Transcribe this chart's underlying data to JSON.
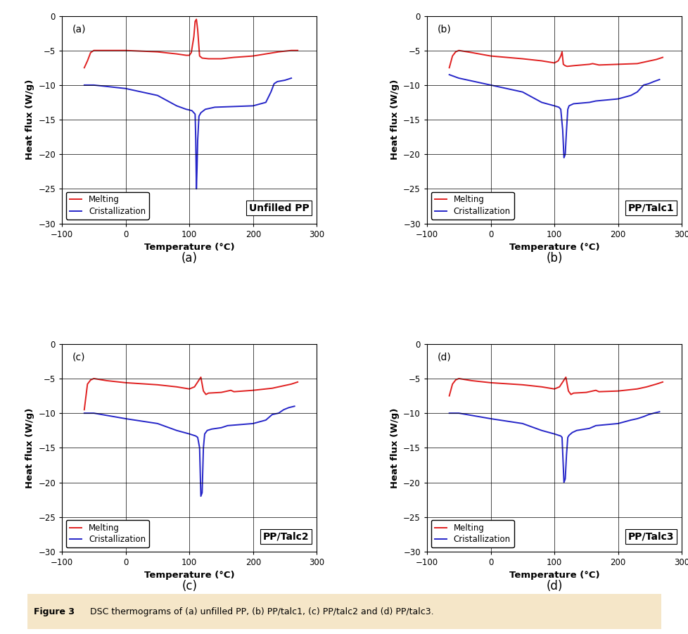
{
  "xlim": [
    -100,
    300
  ],
  "ylim": [
    -30,
    0
  ],
  "xticks": [
    -100,
    0,
    100,
    200,
    300
  ],
  "yticks": [
    0,
    -5,
    -10,
    -15,
    -20,
    -25,
    -30
  ],
  "xlabel": "Temperature (°C)",
  "ylabel": "Heat flux (W/g)",
  "red_color": "#e02020",
  "blue_color": "#2525c8",
  "legend_melting": "Melting",
  "legend_cryst": "Cristallization",
  "subplots": [
    {
      "label": "(a)",
      "title": "Unfilled PP",
      "melting_x": [
        -65,
        -60,
        -55,
        -50,
        -30,
        0,
        50,
        80,
        95,
        100,
        103,
        107,
        109,
        111,
        113,
        116,
        120,
        130,
        150,
        160,
        170,
        200,
        240,
        260,
        270
      ],
      "melting_y": [
        -7.5,
        -6.5,
        -5.3,
        -5.0,
        -5.0,
        -5.0,
        -5.2,
        -5.5,
        -5.7,
        -5.7,
        -5.3,
        -3.0,
        -0.8,
        -0.5,
        -2.0,
        -5.8,
        -6.1,
        -6.2,
        -6.2,
        -6.1,
        -6.0,
        -5.8,
        -5.2,
        -5.0,
        -5.0
      ],
      "cryst_x": [
        -65,
        -50,
        0,
        50,
        80,
        95,
        100,
        104,
        107,
        109,
        110,
        111,
        112,
        113,
        115,
        118,
        125,
        140,
        200,
        220,
        228,
        233,
        238,
        250,
        260
      ],
      "cryst_y": [
        -10.0,
        -10.0,
        -10.5,
        -11.5,
        -13.0,
        -13.5,
        -13.6,
        -13.7,
        -14.0,
        -14.2,
        -18.0,
        -25.0,
        -22.0,
        -18.0,
        -14.5,
        -14.0,
        -13.5,
        -13.2,
        -13.0,
        -12.5,
        -11.0,
        -9.8,
        -9.5,
        -9.3,
        -9.0
      ]
    },
    {
      "label": "(b)",
      "title": "PP/Talc1",
      "melting_x": [
        -65,
        -60,
        -55,
        -50,
        -30,
        0,
        50,
        80,
        100,
        106,
        110,
        112,
        114,
        117,
        120,
        130,
        155,
        160,
        165,
        170,
        200,
        230,
        245,
        260,
        270
      ],
      "melting_y": [
        -7.5,
        -5.8,
        -5.2,
        -5.0,
        -5.3,
        -5.8,
        -6.2,
        -6.5,
        -6.8,
        -6.5,
        -5.8,
        -5.2,
        -7.0,
        -7.2,
        -7.3,
        -7.2,
        -7.0,
        -6.9,
        -7.0,
        -7.1,
        -7.0,
        -6.9,
        -6.6,
        -6.3,
        -6.0
      ],
      "cryst_x": [
        -65,
        -50,
        0,
        50,
        80,
        100,
        107,
        110,
        113,
        115,
        117,
        119,
        121,
        123,
        130,
        155,
        165,
        200,
        220,
        230,
        240,
        248,
        256,
        265
      ],
      "cryst_y": [
        -8.5,
        -9.0,
        -10.0,
        -11.0,
        -12.5,
        -13.0,
        -13.2,
        -13.5,
        -16.5,
        -20.5,
        -20.0,
        -16.5,
        -13.5,
        -13.0,
        -12.7,
        -12.5,
        -12.3,
        -12.0,
        -11.5,
        -11.0,
        -10.0,
        -9.8,
        -9.5,
        -9.2
      ]
    },
    {
      "label": "(c)",
      "title": "PP/Talc2",
      "melting_x": [
        -65,
        -60,
        -55,
        -50,
        -30,
        0,
        50,
        80,
        100,
        108,
        113,
        118,
        122,
        126,
        130,
        150,
        160,
        165,
        170,
        200,
        230,
        245,
        260,
        270
      ],
      "melting_y": [
        -9.5,
        -5.8,
        -5.2,
        -5.0,
        -5.3,
        -5.6,
        -5.9,
        -6.2,
        -6.5,
        -6.2,
        -5.5,
        -4.8,
        -6.8,
        -7.3,
        -7.1,
        -7.0,
        -6.8,
        -6.7,
        -6.9,
        -6.7,
        -6.4,
        -6.1,
        -5.8,
        -5.5
      ],
      "cryst_x": [
        -65,
        -50,
        0,
        50,
        80,
        100,
        110,
        113,
        116,
        118,
        120,
        122,
        124,
        128,
        135,
        150,
        160,
        200,
        220,
        230,
        240,
        248,
        256,
        265
      ],
      "cryst_y": [
        -10.0,
        -10.0,
        -10.8,
        -11.5,
        -12.5,
        -13.0,
        -13.3,
        -13.5,
        -15.0,
        -22.0,
        -21.5,
        -15.0,
        -13.0,
        -12.5,
        -12.3,
        -12.1,
        -11.8,
        -11.5,
        -11.0,
        -10.2,
        -10.0,
        -9.5,
        -9.2,
        -9.0
      ]
    },
    {
      "label": "(d)",
      "title": "PP/Talc3",
      "melting_x": [
        -65,
        -60,
        -55,
        -50,
        -30,
        0,
        50,
        80,
        100,
        108,
        113,
        118,
        122,
        126,
        130,
        150,
        160,
        165,
        170,
        200,
        230,
        245,
        260,
        270
      ],
      "melting_y": [
        -7.5,
        -5.8,
        -5.2,
        -5.0,
        -5.3,
        -5.6,
        -5.9,
        -6.2,
        -6.5,
        -6.2,
        -5.5,
        -4.8,
        -6.8,
        -7.3,
        -7.1,
        -7.0,
        -6.8,
        -6.7,
        -6.9,
        -6.8,
        -6.5,
        -6.2,
        -5.8,
        -5.5
      ],
      "cryst_x": [
        -65,
        -50,
        0,
        50,
        80,
        100,
        110,
        112,
        115,
        117,
        119,
        121,
        123,
        128,
        135,
        155,
        165,
        200,
        220,
        230,
        240,
        248,
        256,
        265
      ],
      "cryst_y": [
        -10.0,
        -10.0,
        -10.8,
        -11.5,
        -12.5,
        -13.0,
        -13.3,
        -13.5,
        -20.0,
        -19.5,
        -16.0,
        -13.5,
        -13.2,
        -12.8,
        -12.5,
        -12.2,
        -11.8,
        -11.5,
        -11.0,
        -10.8,
        -10.5,
        -10.2,
        -10.0,
        -9.8
      ]
    }
  ],
  "subplot_labels_below": [
    "(a)",
    "(b)",
    "(c)",
    "(d)"
  ],
  "figure_caption_bold": "Figure 3",
  "figure_caption_normal": "   DSC thermograms of (a) unfilled PP, (b) PP/talc1, (c) PP/talc2 and (d) PP/talc3.",
  "caption_bg_color": "#f5e6c8"
}
